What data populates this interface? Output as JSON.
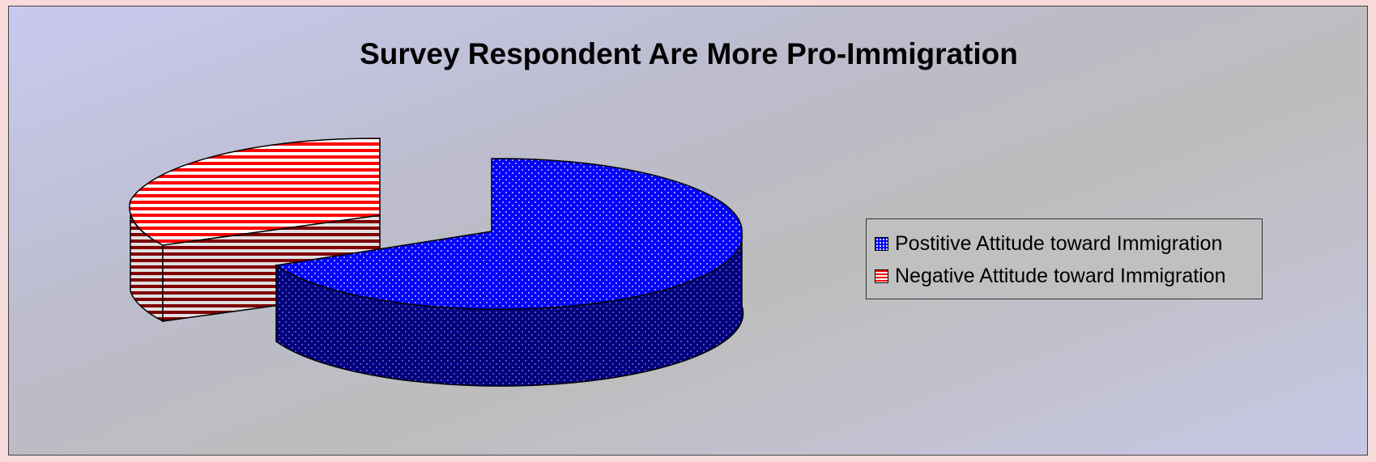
{
  "chart_data": {
    "type": "pie",
    "style": "3d-exploded",
    "title": "Survey Respondent Are More Pro-Immigration",
    "legend_position": "right",
    "slices": [
      {
        "name": "Postitive Attitude toward Immigration",
        "value": 72,
        "color": "#0000ff",
        "pattern": "dots"
      },
      {
        "name": "Negative Attitude toward Immigration",
        "value": 28,
        "color": "#ff0000",
        "pattern": "horizontal-stripes"
      }
    ]
  },
  "legend": {
    "items": [
      {
        "label": "Postitive Attitude toward Immigration",
        "color": "#0000ff"
      },
      {
        "label": "Negative Attitude toward Immigration",
        "color": "#ff0000"
      }
    ]
  }
}
